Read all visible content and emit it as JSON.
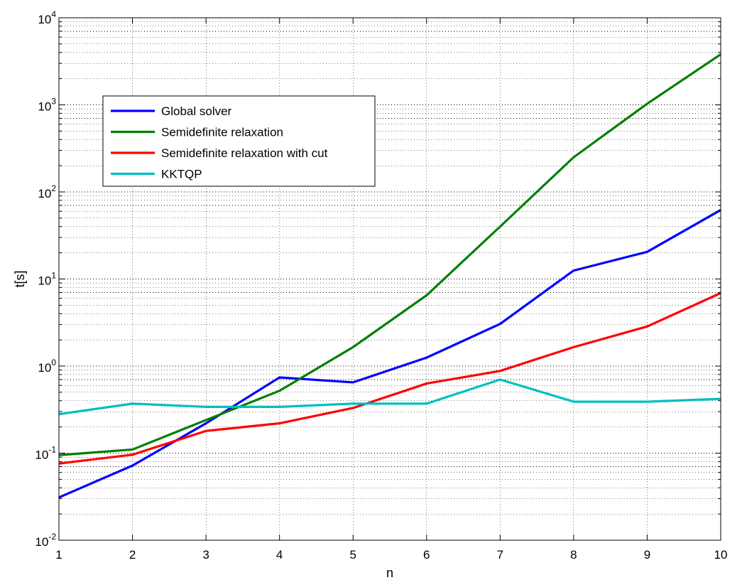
{
  "chart_data": {
    "type": "line",
    "title": "",
    "xlabel": "n",
    "ylabel": "t[s]",
    "x": [
      1,
      2,
      3,
      4,
      5,
      6,
      7,
      8,
      9,
      10
    ],
    "xlim": [
      1,
      10
    ],
    "ylim": [
      0.01,
      10000
    ],
    "yscale": "log",
    "xticks": [
      "1",
      "2",
      "3",
      "4",
      "5",
      "6",
      "7",
      "8",
      "9",
      "10"
    ],
    "yticks": [
      {
        "base": "10",
        "exp": "-2"
      },
      {
        "base": "10",
        "exp": "-1"
      },
      {
        "base": "10",
        "exp": "0"
      },
      {
        "base": "10",
        "exp": "1"
      },
      {
        "base": "10",
        "exp": "2"
      },
      {
        "base": "10",
        "exp": "3"
      },
      {
        "base": "10",
        "exp": "4"
      }
    ],
    "grid": true,
    "legend_position": "upper-left",
    "series": [
      {
        "name": "Global solver",
        "color": "#0000ff",
        "values": [
          0.031,
          0.072,
          0.22,
          0.74,
          0.65,
          1.25,
          3.05,
          12.5,
          20.5,
          62
        ]
      },
      {
        "name": "Semidefinite relaxation",
        "color": "#007f00",
        "values": [
          0.095,
          0.11,
          0.24,
          0.52,
          1.65,
          6.5,
          40,
          250,
          1030,
          3800
        ]
      },
      {
        "name": "Semidefinite relaxation with cut",
        "color": "#ff0000",
        "values": [
          0.076,
          0.096,
          0.18,
          0.22,
          0.33,
          0.63,
          0.88,
          1.65,
          2.85,
          6.9
        ]
      },
      {
        "name": "KKTQP",
        "color": "#00bfbf",
        "values": [
          0.28,
          0.37,
          0.34,
          0.34,
          0.37,
          0.37,
          0.7,
          0.39,
          0.39,
          0.42
        ]
      }
    ]
  }
}
